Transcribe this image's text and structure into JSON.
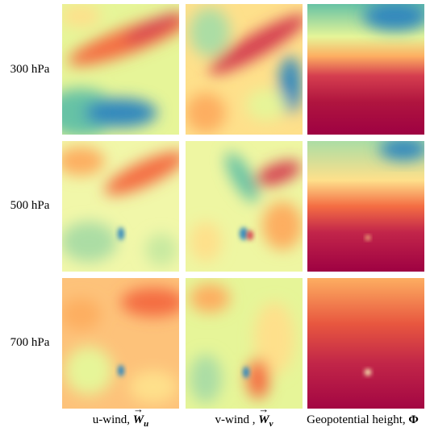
{
  "rows": [
    "300 hPa",
    "500 hPa",
    "700 hPa"
  ],
  "columns": [
    {
      "label": "u-wind, ",
      "symbol": "W",
      "subscript": "u"
    },
    {
      "label": "v-wind , ",
      "symbol": "W",
      "subscript": "v"
    },
    {
      "label": "Geopotential height, ",
      "symbol": "Φ"
    }
  ]
}
